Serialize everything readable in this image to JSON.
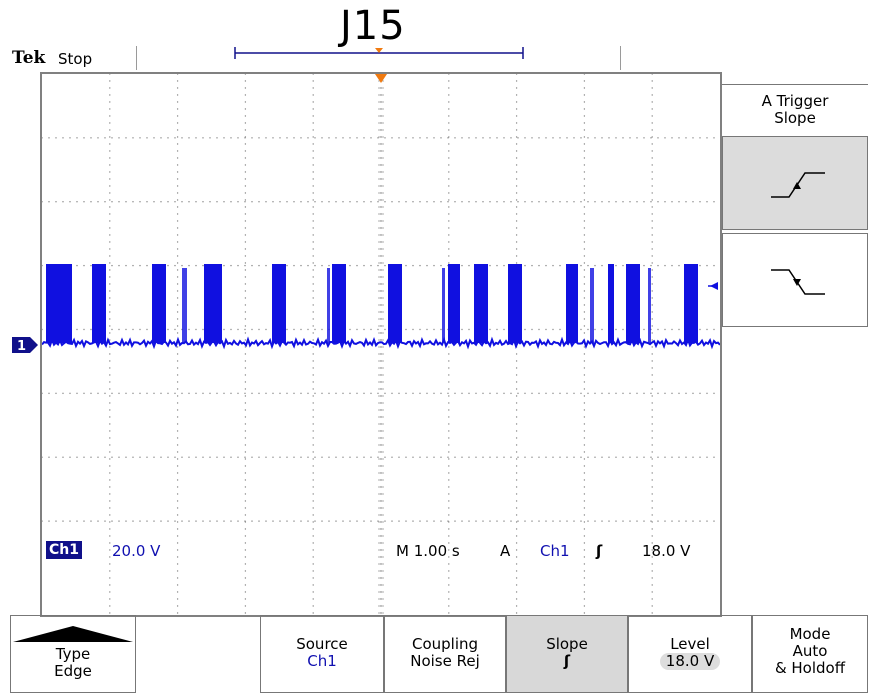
{
  "scope_title": "J15",
  "brand": "Tek",
  "acquisition_state": "Stop",
  "side_menu": {
    "title_line1": "A Trigger",
    "title_line2": "Slope",
    "options": [
      {
        "name": "rising-edge",
        "icon": "rising-edge-icon",
        "selected": true
      },
      {
        "name": "falling-edge",
        "icon": "falling-edge-icon",
        "selected": false
      }
    ]
  },
  "readouts": {
    "channel": "Ch1",
    "volts_per_div": "20.0 V",
    "timebase": "M 1.00 s",
    "trigger_mode": "A",
    "trigger_source": "Ch1",
    "trigger_slope_symbol": "ʃ",
    "trigger_level": "18.0 V"
  },
  "channel_marker": "1",
  "bottom_menu": {
    "type": {
      "line1": "Type",
      "line2": "Edge"
    },
    "source": {
      "line1": "Source",
      "line2": "Ch1"
    },
    "coupling": {
      "line1": "Coupling",
      "line2": "Noise Rej"
    },
    "slope": {
      "line1": "Slope",
      "line2": "ʃ"
    },
    "level": {
      "line1": "Level",
      "line2": "18.0 V"
    },
    "mode": {
      "line1": "Mode",
      "line2": "Auto",
      "line3": "& Holdoff"
    }
  },
  "colors": {
    "trace": "#1010e0",
    "trigger_marker": "#f07a10",
    "readout": "#1010b0"
  }
}
